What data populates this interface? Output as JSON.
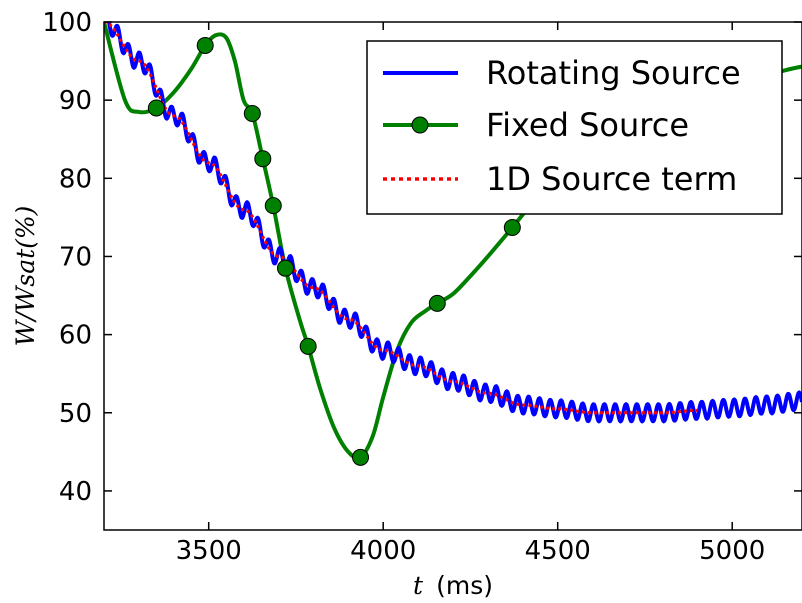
{
  "chart_data": {
    "type": "line",
    "xlabel_var": "t",
    "xlabel_unit": "(ms)",
    "ylabel": "W/Wsat(%)",
    "xlim": [
      3200,
      5200
    ],
    "ylim": [
      35,
      100
    ],
    "xticks": [
      3500,
      4000,
      4500,
      5000
    ],
    "yticks": [
      40,
      50,
      60,
      70,
      80,
      90,
      100
    ],
    "legend_position": "top-right",
    "series": [
      {
        "name": "Rotating Source",
        "color": "#0000ff",
        "style": "solid",
        "oscillation": {
          "amplitude": 1.1,
          "period_ms": 31
        },
        "x": [
          3200,
          3300,
          3400,
          3500,
          3600,
          3700,
          3800,
          3900,
          4000,
          4100,
          4200,
          4300,
          4400,
          4500,
          4600,
          4700,
          4800,
          4900,
          5000,
          5100,
          5200
        ],
        "y": [
          100,
          95,
          88,
          82,
          76,
          70,
          66,
          62,
          58,
          56,
          54,
          52.5,
          51,
          50.5,
          50,
          50,
          50,
          50.3,
          50.6,
          51,
          51.5
        ]
      },
      {
        "name": "Fixed Source",
        "color": "#008000",
        "style": "solid",
        "marker": "circle",
        "x": [
          3200,
          3260,
          3300,
          3350,
          3400,
          3450,
          3490,
          3520,
          3550,
          3575,
          3600,
          3625,
          3655,
          3685,
          3720,
          3760,
          3785,
          3820,
          3860,
          3900,
          3935,
          3970,
          4000,
          4040,
          4080,
          4120,
          4155,
          4200,
          4250,
          4300,
          4370,
          4450,
          4550,
          4650,
          4750,
          4850,
          4950,
          5050,
          5150,
          5200
        ],
        "y": [
          100,
          90,
          88.5,
          89,
          91,
          94,
          97,
          98.3,
          98,
          95,
          90,
          88.3,
          82.5,
          76.5,
          68.5,
          62,
          58.5,
          53,
          48,
          45,
          44.3,
          47,
          52,
          58,
          61.5,
          63,
          64,
          65.2,
          67.5,
          70,
          73.7,
          78,
          82,
          85,
          87.5,
          89.5,
          91,
          92.5,
          93.8,
          94.3
        ],
        "marker_points": [
          [
            3350,
            89
          ],
          [
            3490,
            97
          ],
          [
            3625,
            88.3
          ],
          [
            3655,
            82.5
          ],
          [
            3685,
            76.5
          ],
          [
            3720,
            68.5
          ],
          [
            3785,
            58.5
          ],
          [
            3935,
            44.3
          ],
          [
            4155,
            64
          ],
          [
            4370,
            73.7
          ]
        ]
      },
      {
        "name": "1D Source term",
        "color": "#ff0000",
        "style": "dotted",
        "x": [
          3200,
          3300,
          3400,
          3500,
          3600,
          3700,
          3800,
          3900,
          4000,
          4100,
          4200,
          4300,
          4400,
          4500,
          4600,
          4700,
          4800,
          4900
        ],
        "y": [
          100,
          95,
          88,
          82,
          76,
          70,
          66,
          62,
          58,
          56,
          54,
          52.5,
          51,
          50.5,
          50,
          50,
          50,
          50.3
        ]
      }
    ]
  }
}
